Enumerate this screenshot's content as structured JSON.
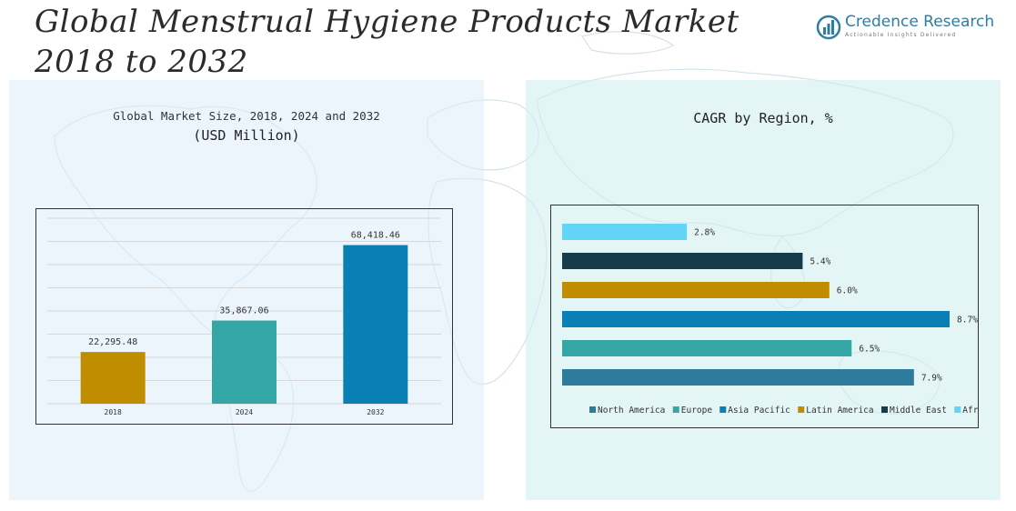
{
  "header": {
    "title_line1": "Global Menstrual Hygiene Products Market",
    "title_line2": "2018 to 2032",
    "logo_name": "Credence Research",
    "logo_tagline": "Actionable Insights Delivered"
  },
  "colors": {
    "north_america": "#2e7b9d",
    "europe": "#35a6a6",
    "asia_pacific": "#0a7fb5",
    "latin_america": "#c08d00",
    "middle_east": "#163c4c",
    "africa": "#62d4f7"
  },
  "chart_data": [
    {
      "type": "bar",
      "title": "Global Market Size, 2018, 2024 and 2032",
      "subtitle": "(USD Million)",
      "categories": [
        "2018",
        "2024",
        "2032"
      ],
      "values": [
        22295.48,
        35867.06,
        68418.46
      ],
      "value_labels": [
        "22,295.48",
        "35,867.06",
        "68,418.46"
      ],
      "bar_colors": [
        "#c08d00",
        "#35a6a6",
        "#0a7fb5"
      ],
      "ylim": [
        0,
        80000
      ],
      "grid": true
    },
    {
      "type": "bar",
      "orientation": "horizontal",
      "title": "CAGR by Region, %",
      "categories": [
        "Africa",
        "Middle East",
        "Latin America",
        "Asia Pacific",
        "Europe",
        "North America"
      ],
      "values": [
        2.8,
        5.4,
        6.0,
        8.7,
        6.5,
        7.9
      ],
      "value_labels": [
        "2.8%",
        "5.4%",
        "6.0%",
        "8.7%",
        "6.5%",
        "7.9%"
      ],
      "bar_colors": [
        "#62d4f7",
        "#163c4c",
        "#c08d00",
        "#0a7fb5",
        "#35a6a6",
        "#2e7b9d"
      ],
      "xlim": [
        0,
        8.7
      ],
      "legend": [
        "North America",
        "Europe",
        "Asia Pacific",
        "Latin America",
        "Middle East",
        "Africa"
      ],
      "legend_colors": [
        "#2e7b9d",
        "#35a6a6",
        "#0a7fb5",
        "#c08d00",
        "#163c4c",
        "#62d4f7"
      ],
      "legend_position": "bottom"
    }
  ]
}
